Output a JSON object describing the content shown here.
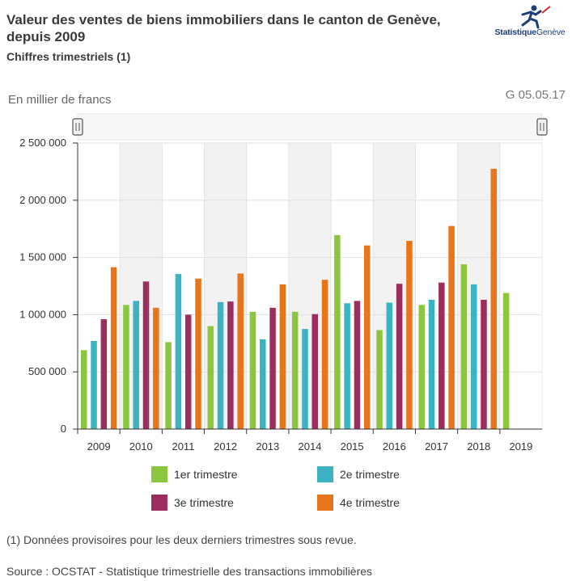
{
  "header": {
    "title": "Valeur des ventes de biens immobiliers dans le canton de Genève, depuis 2009",
    "subtitle": "Chiffres trimestriels (1)",
    "logo_bold": "Statistique",
    "logo_light": "Genève",
    "unit_label": "En millier de francs",
    "chart_code": "G 05.05.17"
  },
  "colors": {
    "q1": "#8cc63f",
    "q2": "#3bb3c3",
    "q3": "#9b2d5f",
    "q4": "#e8751a",
    "band": "#f2f2f2",
    "grid": "#e0e0e0"
  },
  "footer": {
    "footnote": "(1) Données provisoires pour les deux derniers trimestres sous revue.",
    "source": "Source : OCSTAT - Statistique trimestrielle des transactions immobilières"
  },
  "chart_data": {
    "type": "bar",
    "title": "Valeur des ventes de biens immobiliers dans le canton de Genève, depuis 2009",
    "ylabel": "En millier de francs",
    "ylim": [
      0,
      2500000
    ],
    "y_ticks": [
      0,
      500000,
      1000000,
      1500000,
      2000000,
      2500000
    ],
    "y_tick_labels": [
      "0",
      "500 000",
      "1 000 000",
      "1 500 000",
      "2 000 000",
      "2 500 000"
    ],
    "categories": [
      "2009",
      "2010",
      "2011",
      "2012",
      "2013",
      "2014",
      "2015",
      "2016",
      "2017",
      "2018",
      "2019"
    ],
    "legend_position": "bottom",
    "series": [
      {
        "name": "1er trimestre",
        "values": [
          690000,
          1085000,
          760000,
          900000,
          1025000,
          1025000,
          1695000,
          865000,
          1085000,
          1440000,
          1190000
        ]
      },
      {
        "name": "2e trimestre",
        "values": [
          770000,
          1120000,
          1355000,
          1110000,
          785000,
          875000,
          1100000,
          1105000,
          1130000,
          1265000,
          null
        ]
      },
      {
        "name": "3e trimestre",
        "values": [
          960000,
          1290000,
          1000000,
          1115000,
          1060000,
          1005000,
          1120000,
          1270000,
          1280000,
          1130000,
          null
        ]
      },
      {
        "name": "4e trimestre",
        "values": [
          1415000,
          1060000,
          1315000,
          1360000,
          1265000,
          1305000,
          1605000,
          1645000,
          1775000,
          2275000,
          null
        ]
      }
    ]
  }
}
